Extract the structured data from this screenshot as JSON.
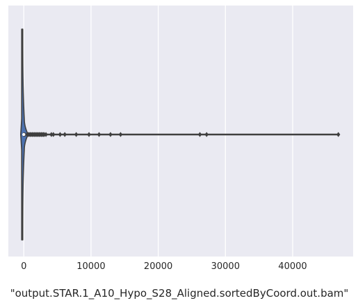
{
  "chart_data": {
    "type": "violin",
    "orientation": "horizontal",
    "xlabel": "\"output.STAR.1_A10_Hypo_S28_Aligned.sortedByCoord.out.bam\"",
    "xlim": [
      -2300,
      49000
    ],
    "xticks": [
      0,
      10000,
      20000,
      30000,
      40000
    ],
    "xtick_labels": [
      "0",
      "10000",
      "20000",
      "30000",
      "40000"
    ],
    "grid": true,
    "style": {
      "background": "#EAEAF2",
      "grid_color": "#FFFFFF",
      "violin_fill": "#4C72B0",
      "line_color": "#3F3F3F"
    },
    "box": {
      "min": 0,
      "q1": 0,
      "median": 0,
      "q3": 150,
      "whisker_high": 380
    },
    "outliers": [
      500,
      650,
      800,
      950,
      1100,
      1250,
      1400,
      1550,
      1700,
      1850,
      2000,
      2150,
      2300,
      2450,
      2600,
      2750,
      2900,
      3050,
      3300,
      4100,
      4400,
      5400,
      6100,
      7800,
      9700,
      11200,
      12900,
      14400,
      26200,
      27200,
      46800
    ]
  }
}
